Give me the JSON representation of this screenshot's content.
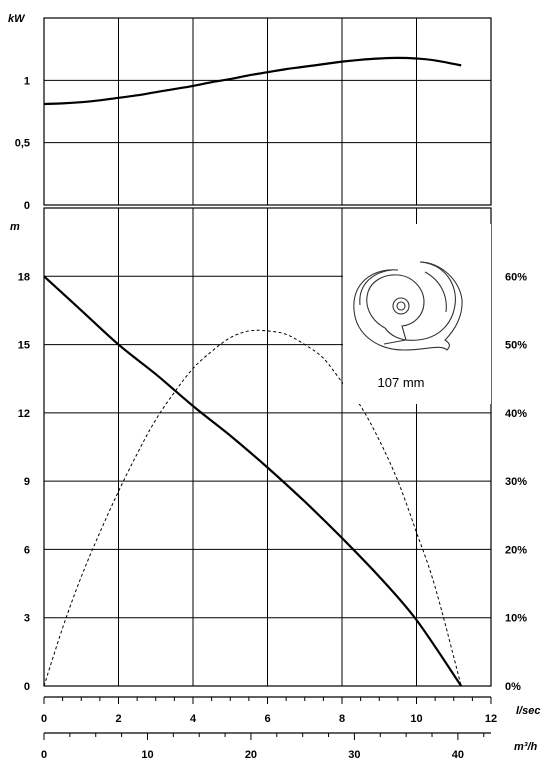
{
  "chart_data": [
    {
      "type": "line",
      "panel": "power",
      "ylabel": "kW",
      "ylim": [
        0,
        1.5
      ],
      "yticks": [
        0,
        0.5,
        1
      ],
      "ytick_labels": [
        "0",
        "0,5",
        "1"
      ],
      "xlim": [
        0,
        12
      ],
      "series": [
        {
          "style": "solid",
          "x": [
            0,
            0.5,
            1,
            1.5,
            2,
            2.5,
            3,
            3.5,
            4,
            4.5,
            5,
            5.5,
            6,
            6.5,
            7,
            7.5,
            8,
            8.5,
            9,
            9.5,
            10,
            10.5,
            11.2
          ],
          "y": [
            0.81,
            0.815,
            0.825,
            0.84,
            0.86,
            0.88,
            0.905,
            0.93,
            0.955,
            0.985,
            1.01,
            1.04,
            1.065,
            1.09,
            1.11,
            1.13,
            1.15,
            1.165,
            1.175,
            1.18,
            1.175,
            1.16,
            1.12
          ]
        }
      ]
    },
    {
      "type": "line",
      "panel": "head-efficiency",
      "ylabel": "m",
      "ylim": [
        0,
        21
      ],
      "yticks": [
        0,
        3,
        6,
        9,
        12,
        15,
        18
      ],
      "y2lim": [
        0,
        0.7
      ],
      "y2ticks": [
        "0%",
        "10%",
        "20%",
        "30%",
        "40%",
        "50%",
        "60%"
      ],
      "x": {
        "label": "l/sec",
        "lim": [
          0,
          12
        ],
        "ticks": [
          "0",
          "2",
          "4",
          "6",
          "8",
          "10",
          "12"
        ]
      },
      "x2": {
        "label": "m³/h",
        "ticks": [
          "0",
          "10",
          "20",
          "30",
          "40"
        ]
      },
      "series": [
        {
          "style": "solid",
          "axis": "left",
          "x": [
            0,
            1,
            2,
            3,
            4,
            5,
            6,
            7,
            8,
            9,
            10,
            11.2
          ],
          "y": [
            18,
            16.5,
            15,
            13.7,
            12.3,
            11,
            9.6,
            8.1,
            6.5,
            4.8,
            2.9,
            0
          ]
        },
        {
          "style": "dashed",
          "axis": "right",
          "x": [
            0,
            0.5,
            1,
            1.5,
            2,
            2.5,
            3,
            3.5,
            4,
            4.5,
            5,
            5.5,
            6,
            6.5,
            7,
            7.5,
            8,
            8.5,
            9,
            9.5,
            10,
            10.5,
            11.2
          ],
          "y": [
            0,
            0.085,
            0.16,
            0.225,
            0.285,
            0.34,
            0.39,
            0.43,
            0.465,
            0.49,
            0.51,
            0.52,
            0.52,
            0.515,
            0.5,
            0.48,
            0.445,
            0.41,
            0.36,
            0.3,
            0.225,
            0.145,
            0
          ]
        }
      ],
      "legend_placement": "top-right"
    }
  ],
  "impeller": {
    "label": "107 mm",
    "icon": "impeller-icon"
  }
}
